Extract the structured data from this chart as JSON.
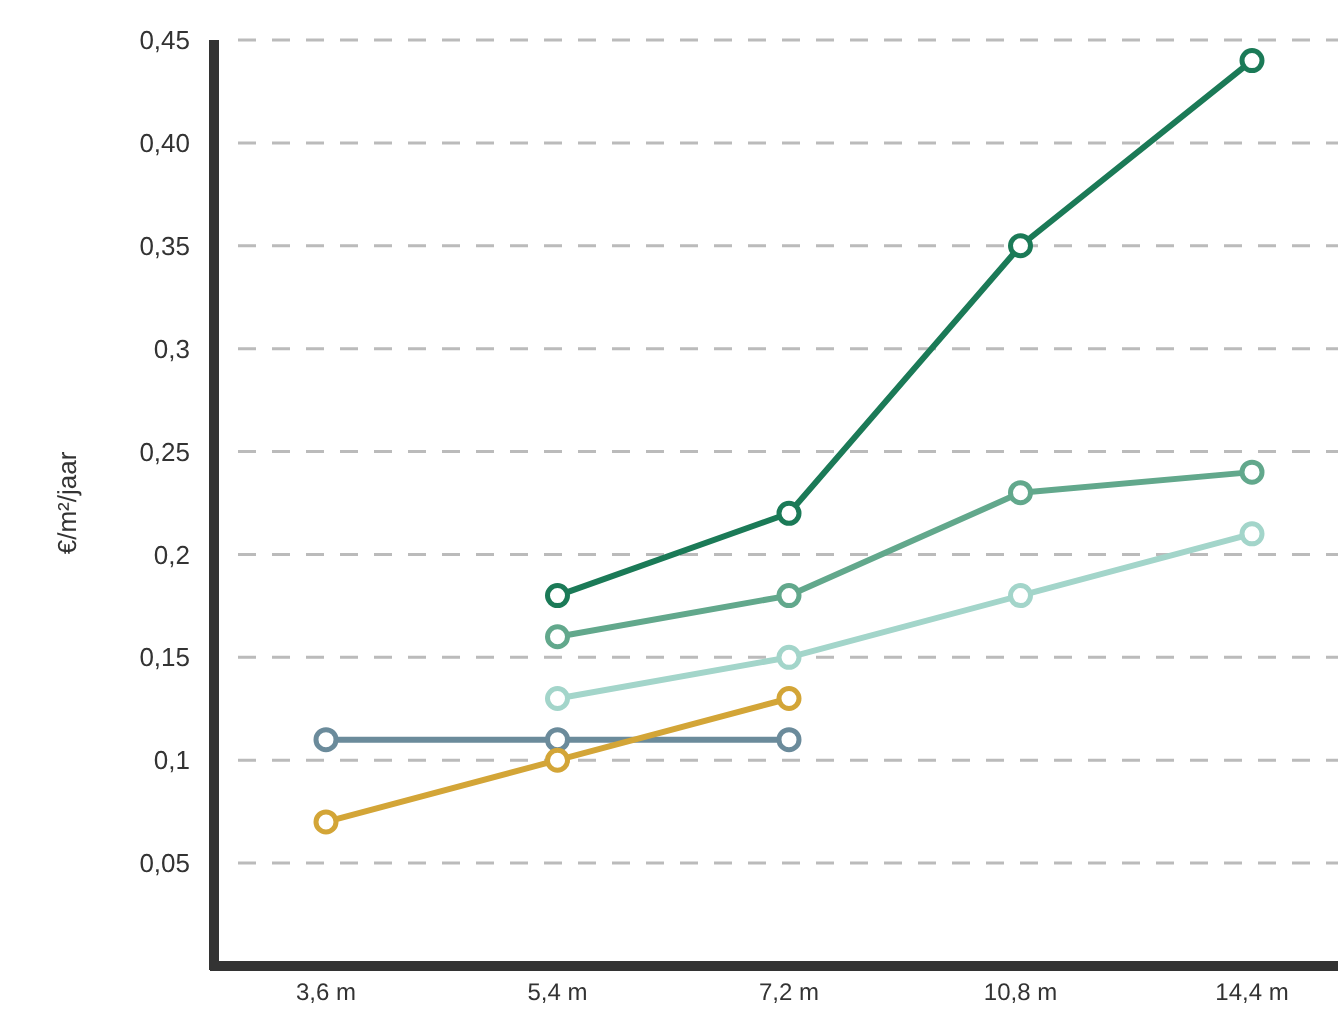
{
  "chart_data": {
    "type": "line",
    "ylabel": "€/m²/jaar",
    "categories": [
      "3,6 m",
      "5,4 m",
      "7,2 m",
      "10,8 m",
      "14,4 m"
    ],
    "series": [
      {
        "color": "#1b7a57",
        "values": [
          null,
          0.18,
          0.22,
          0.35,
          0.44
        ]
      },
      {
        "color": "#62a88c",
        "values": [
          null,
          0.16,
          0.18,
          0.23,
          0.24
        ]
      },
      {
        "color": "#a3d5ca",
        "values": [
          null,
          0.13,
          0.15,
          0.18,
          0.21
        ]
      },
      {
        "color": "#6b8b9b",
        "values": [
          0.11,
          0.11,
          0.11,
          null,
          null
        ]
      },
      {
        "color": "#d3a537",
        "values": [
          0.07,
          0.1,
          0.13,
          null,
          null
        ]
      }
    ],
    "ylim": [
      0,
      0.45
    ],
    "yticks": [
      {
        "value": 0.05,
        "label": "0,05"
      },
      {
        "value": 0.1,
        "label": "0,1"
      },
      {
        "value": 0.15,
        "label": "0,15"
      },
      {
        "value": 0.2,
        "label": "0,2"
      },
      {
        "value": 0.25,
        "label": "0,25"
      },
      {
        "value": 0.3,
        "label": "0,3"
      },
      {
        "value": 0.35,
        "label": "0,35"
      },
      {
        "value": 0.4,
        "label": "0,40"
      },
      {
        "value": 0.45,
        "label": "0,45"
      }
    ],
    "grid": "y",
    "marker": "circle"
  }
}
